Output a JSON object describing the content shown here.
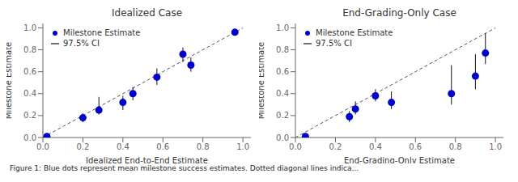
{
  "chart_data": [
    {
      "type": "scatter",
      "title": "Idealized Case",
      "x_label": "Idealized End-to-End Estimate",
      "y_label": "Milestone Estimate",
      "x": [
        0.02,
        0.2,
        0.28,
        0.4,
        0.45,
        0.57,
        0.7,
        0.74,
        0.96
      ],
      "series": [
        {
          "name": "Milestone Estimate",
          "type": "scatter",
          "color": "#0000cc",
          "values": [
            0.01,
            0.18,
            0.25,
            0.32,
            0.4,
            0.55,
            0.76,
            0.66,
            0.96
          ]
        },
        {
          "name": "97.5% CI",
          "type": "errorbar",
          "color": "#111111",
          "lower": [
            0.0,
            0.04,
            0.04,
            0.07,
            0.06,
            0.07,
            0.07,
            0.06,
            0.0
          ],
          "upper": [
            0.0,
            0.04,
            0.12,
            0.06,
            0.06,
            0.08,
            0.06,
            0.07,
            0.0
          ]
        }
      ],
      "diagonal": {
        "x": [
          0,
          1
        ],
        "y": [
          0,
          1
        ],
        "color": "#555555",
        "line_style": "dashed"
      },
      "xlim": [
        0,
        1.04
      ],
      "ylim": [
        0,
        1.04
      ],
      "xticks": [
        {
          "value": 0,
          "label": "0.0"
        },
        0.2,
        0.4,
        0.6,
        0.8,
        {
          "value": 1,
          "label": "1.0"
        }
      ],
      "yticks": [
        {
          "value": 0,
          "label": "0.0"
        },
        0.2,
        0.4,
        0.6,
        0.8,
        {
          "value": 1,
          "label": "1.0"
        }
      ],
      "grid": false,
      "legend": "upper left"
    },
    {
      "type": "scatter",
      "title": "End-Grading-Only Case",
      "x_label": "End-Grading-Only Estimate",
      "y_label": "Milestone Estimate",
      "x": [
        0.05,
        0.27,
        0.3,
        0.4,
        0.48,
        0.78,
        0.9,
        0.95
      ],
      "series": [
        {
          "name": "Milestone Estimate",
          "type": "scatter",
          "color": "#0000cc",
          "values": [
            0.01,
            0.19,
            0.26,
            0.38,
            0.32,
            0.4,
            0.56,
            0.77
          ]
        },
        {
          "name": "97.5% CI",
          "type": "errorbar",
          "color": "#111111",
          "lower": [
            0.0,
            0.05,
            0.05,
            0.05,
            0.06,
            0.1,
            0.12,
            0.1
          ],
          "upper": [
            0.0,
            0.05,
            0.07,
            0.06,
            0.1,
            0.26,
            0.2,
            0.18
          ]
        }
      ],
      "diagonal": {
        "x": [
          0,
          1
        ],
        "y": [
          0,
          1
        ],
        "color": "#555555",
        "line_style": "dashed"
      },
      "xlim": [
        0,
        1.04
      ],
      "ylim": [
        0,
        1.04
      ],
      "xticks": [
        {
          "value": 0,
          "label": "0.0"
        },
        0.2,
        0.4,
        0.6,
        0.8,
        {
          "value": 1,
          "label": "1.0"
        }
      ],
      "yticks": [
        {
          "value": 0,
          "label": "0.0"
        },
        0.2,
        0.4,
        0.6,
        0.8,
        {
          "value": 1,
          "label": "1.0"
        }
      ],
      "grid": false,
      "legend": "upper left"
    }
  ],
  "caption": "Figure 1: Blue dots represent mean milestone success estimates. Dotted diagonal lines indica..."
}
